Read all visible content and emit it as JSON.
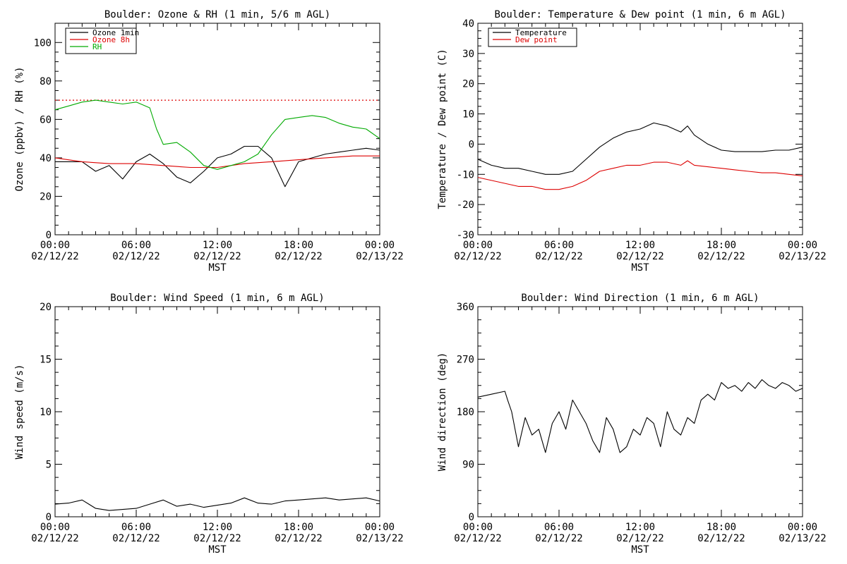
{
  "chart_data": [
    {
      "type": "line",
      "title": "Boulder: Ozone & RH (1 min, 5/6 m AGL)",
      "ylabel": "Ozone (ppbv) / RH (%)",
      "xlabel": "MST",
      "ylim": [
        0,
        110
      ],
      "yticks": [
        0,
        20,
        40,
        60,
        80,
        100
      ],
      "xlim": [
        "2022-02-12 00:00",
        "2022-02-13 00:00"
      ],
      "xticks": [
        "00:00 02/12/22",
        "06:00 02/12/22",
        "12:00 02/12/22",
        "18:00 02/12/22",
        "00:00 02/13/22"
      ],
      "legend": "top-left",
      "reference_line": {
        "y": 70,
        "color": "#dd0000",
        "style": "dotted"
      },
      "series": [
        {
          "name": "Ozone 1min",
          "color": "#000000",
          "x": [
            0,
            1,
            2,
            3,
            4,
            5,
            6,
            7,
            8,
            9,
            10,
            11,
            12,
            13,
            14,
            15,
            16,
            17,
            18,
            19,
            20,
            21,
            22,
            23,
            24
          ],
          "y": [
            38,
            38,
            38,
            33,
            36,
            29,
            38,
            42,
            37,
            30,
            27,
            33,
            40,
            42,
            46,
            46,
            40,
            25,
            38,
            40,
            42,
            43,
            44,
            45,
            44
          ]
        },
        {
          "name": "Ozone 8h",
          "color": "#dd0000",
          "x": [
            0,
            2,
            4,
            6,
            8,
            10,
            11,
            12,
            14,
            16,
            18,
            20,
            22,
            24
          ],
          "y": [
            40,
            38,
            37,
            37,
            36,
            35,
            35,
            35,
            37,
            38,
            39,
            40,
            41,
            41
          ]
        },
        {
          "name": "RH",
          "color": "#00aa00",
          "x": [
            0,
            1,
            2,
            3,
            4,
            5,
            6,
            7,
            7.5,
            8,
            9,
            10,
            11,
            12,
            13,
            14,
            15,
            16,
            17,
            18,
            19,
            20,
            21,
            22,
            23,
            24
          ],
          "y": [
            65,
            67,
            69,
            70,
            69,
            68,
            69,
            66,
            55,
            47,
            48,
            43,
            36,
            34,
            36,
            38,
            42,
            52,
            60,
            61,
            62,
            61,
            58,
            56,
            55,
            50
          ]
        }
      ]
    },
    {
      "type": "line",
      "title": "Boulder: Temperature & Dew point (1 min, 6 m AGL)",
      "ylabel": "Temperature / Dew point (C)",
      "xlabel": "MST",
      "ylim": [
        -30,
        40
      ],
      "yticks": [
        -30,
        -20,
        -10,
        0,
        10,
        20,
        30,
        40
      ],
      "xlim": [
        "2022-02-12 00:00",
        "2022-02-13 00:00"
      ],
      "xticks": [
        "00:00 02/12/22",
        "06:00 02/12/22",
        "12:00 02/12/22",
        "18:00 02/12/22",
        "00:00 02/13/22"
      ],
      "legend": "top-left",
      "series": [
        {
          "name": "Temperature",
          "color": "#000000",
          "x": [
            0,
            1,
            2,
            3,
            4,
            5,
            6,
            7,
            8,
            9,
            10,
            11,
            12,
            13,
            14,
            15,
            15.5,
            16,
            17,
            18,
            19,
            20,
            21,
            22,
            23,
            24
          ],
          "y": [
            -5,
            -7,
            -8,
            -8,
            -9,
            -10,
            -10,
            -9,
            -5,
            -1,
            2,
            4,
            5,
            7,
            6,
            4,
            6,
            3,
            0,
            -2,
            -2.5,
            -2.5,
            -2.5,
            -2,
            -2,
            -1
          ]
        },
        {
          "name": "Dew point",
          "color": "#dd0000",
          "x": [
            0,
            1,
            2,
            3,
            4,
            5,
            6,
            7,
            8,
            9,
            10,
            11,
            12,
            13,
            14,
            15,
            15.5,
            16,
            17,
            18,
            19,
            20,
            21,
            22,
            23,
            24
          ],
          "y": [
            -11,
            -12,
            -13,
            -14,
            -14,
            -15,
            -15,
            -14,
            -12,
            -9,
            -8,
            -7,
            -7,
            -6,
            -6,
            -7,
            -5.5,
            -7,
            -7.5,
            -8,
            -8.5,
            -9,
            -9.5,
            -9.5,
            -10,
            -10.5
          ]
        }
      ]
    },
    {
      "type": "line",
      "title": "Boulder: Wind Speed (1 min, 6 m AGL)",
      "ylabel": "Wind speed (m/s)",
      "xlabel": "MST",
      "ylim": [
        0,
        20
      ],
      "yticks": [
        0,
        5,
        10,
        15,
        20
      ],
      "xlim": [
        "2022-02-12 00:00",
        "2022-02-13 00:00"
      ],
      "xticks": [
        "00:00 02/12/22",
        "06:00 02/12/22",
        "12:00 02/12/22",
        "18:00 02/12/22",
        "00:00 02/13/22"
      ],
      "series": [
        {
          "color": "#000000",
          "x": [
            0,
            1,
            2,
            3,
            4,
            5,
            6,
            7,
            8,
            9,
            10,
            11,
            12,
            13,
            14,
            15,
            16,
            17,
            18,
            19,
            20,
            21,
            22,
            23,
            24
          ],
          "y": [
            1.2,
            1.3,
            1.6,
            0.8,
            0.6,
            0.7,
            0.8,
            1.2,
            1.6,
            1.0,
            1.2,
            0.9,
            1.1,
            1.3,
            1.8,
            1.3,
            1.2,
            1.5,
            1.6,
            1.7,
            1.8,
            1.6,
            1.7,
            1.8,
            1.5
          ]
        }
      ]
    },
    {
      "type": "line",
      "title": "Boulder: Wind Direction (1 min, 6 m AGL)",
      "ylabel": "Wind direction (deg)",
      "xlabel": "MST",
      "ylim": [
        0,
        360
      ],
      "yticks": [
        0,
        90,
        180,
        270,
        360
      ],
      "xlim": [
        "2022-02-12 00:00",
        "2022-02-13 00:00"
      ],
      "xticks": [
        "00:00 02/12/22",
        "06:00 02/12/22",
        "12:00 02/12/22",
        "18:00 02/12/22",
        "00:00 02/13/22"
      ],
      "series": [
        {
          "color": "#000000",
          "x": [
            0,
            1,
            2,
            2.2,
            2.5,
            3,
            3.5,
            4,
            4.5,
            5,
            5.5,
            6,
            6.5,
            7,
            7.5,
            8,
            8.5,
            9,
            9.5,
            10,
            10.5,
            11,
            11.5,
            12,
            12.5,
            13,
            13.5,
            14,
            14.5,
            15,
            15.5,
            16,
            16.5,
            17,
            17.5,
            18,
            18.5,
            19,
            19.5,
            20,
            20.5,
            21,
            21.5,
            22,
            22.5,
            23,
            23.5,
            24
          ],
          "y": [
            205,
            210,
            215,
            200,
            180,
            120,
            170,
            140,
            150,
            110,
            160,
            180,
            150,
            200,
            180,
            160,
            130,
            110,
            170,
            150,
            110,
            120,
            150,
            140,
            170,
            160,
            120,
            180,
            150,
            140,
            170,
            160,
            200,
            210,
            200,
            230,
            220,
            225,
            215,
            230,
            220,
            235,
            225,
            220,
            230,
            225,
            215,
            220
          ]
        }
      ]
    }
  ]
}
